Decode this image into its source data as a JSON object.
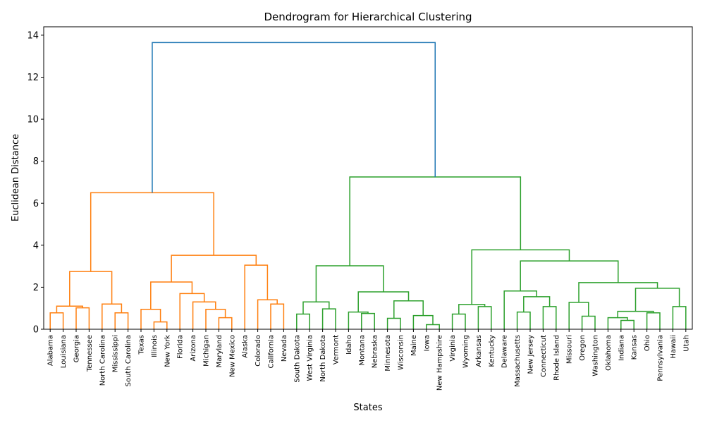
{
  "chart_data": {
    "type": "dendrogram",
    "title": "Dendrogram for Hierarchical Clustering",
    "xlabel": "States",
    "ylabel": "Euclidean Distance",
    "ylim": [
      0,
      14.4
    ],
    "yticks": [
      "0",
      "2",
      "4",
      "6",
      "8",
      "10",
      "12",
      "14"
    ],
    "grid": false,
    "colors": {
      "cluster_orange": "#ff7f0e",
      "cluster_green": "#2ca02c",
      "root_blue": "#1f77b4"
    },
    "leaves": [
      "Alabama",
      "Louisiana",
      "Georgia",
      "Tennessee",
      "North Carolina",
      "Mississippi",
      "South Carolina",
      "Texas",
      "Illinois",
      "New York",
      "Florida",
      "Arizona",
      "Michigan",
      "Maryland",
      "New Mexico",
      "Alaska",
      "Colorado",
      "California",
      "Nevada",
      "South Dakota",
      "West Virginia",
      "North Dakota",
      "Vermont",
      "Idaho",
      "Montana",
      "Nebraska",
      "Minnesota",
      "Wisconsin",
      "Maine",
      "Iowa",
      "New Hampshire",
      "Virginia",
      "Wyoming",
      "Arkansas",
      "Kentucky",
      "Delaware",
      "Massachusetts",
      "New Jersey",
      "Connecticut",
      "Rhode Island",
      "Missouri",
      "Oregon",
      "Washington",
      "Oklahoma",
      "Indiana",
      "Kansas",
      "Ohio",
      "Pennsylvania",
      "Hawaii",
      "Utah"
    ],
    "merges": [
      {
        "a": "Alabama",
        "b": "Louisiana",
        "h": 0.78
      },
      {
        "a": "Georgia",
        "b": "Tennessee",
        "h": 1.02
      },
      {
        "a": "m0",
        "b": "m1",
        "h": 1.1
      },
      {
        "a": "Mississippi",
        "b": "South Carolina",
        "h": 0.78
      },
      {
        "a": "North Carolina",
        "b": "m3",
        "h": 1.2
      },
      {
        "a": "m2",
        "b": "m4",
        "h": 2.75
      },
      {
        "a": "Illinois",
        "b": "New York",
        "h": 0.35
      },
      {
        "a": "Texas",
        "b": "m6",
        "h": 0.95
      },
      {
        "a": "Maryland",
        "b": "New Mexico",
        "h": 0.55
      },
      {
        "a": "Michigan",
        "b": "m8",
        "h": 0.95
      },
      {
        "a": "Arizona",
        "b": "m9",
        "h": 1.3
      },
      {
        "a": "Florida",
        "b": "m10",
        "h": 1.7
      },
      {
        "a": "m7",
        "b": "m11",
        "h": 2.25
      },
      {
        "a": "California",
        "b": "Nevada",
        "h": 1.2
      },
      {
        "a": "Colorado",
        "b": "m13",
        "h": 1.4
      },
      {
        "a": "Alaska",
        "b": "m14",
        "h": 3.05
      },
      {
        "a": "m12",
        "b": "m15",
        "h": 3.52
      },
      {
        "a": "m5",
        "b": "m16",
        "h": 6.5
      },
      {
        "a": "South Dakota",
        "b": "West Virginia",
        "h": 0.72
      },
      {
        "a": "North Dakota",
        "b": "Vermont",
        "h": 0.97
      },
      {
        "a": "m18",
        "b": "m19",
        "h": 1.3
      },
      {
        "a": "Montana",
        "b": "Nebraska",
        "h": 0.75
      },
      {
        "a": "Idaho",
        "b": "m21",
        "h": 0.82
      },
      {
        "a": "Minnesota",
        "b": "Wisconsin",
        "h": 0.52
      },
      {
        "a": "Iowa",
        "b": "New Hampshire",
        "h": 0.22
      },
      {
        "a": "Maine",
        "b": "m24",
        "h": 0.65
      },
      {
        "a": "m23",
        "b": "m25",
        "h": 1.35
      },
      {
        "a": "m22",
        "b": "m26",
        "h": 1.78
      },
      {
        "a": "m20",
        "b": "m27",
        "h": 3.02
      },
      {
        "a": "Virginia",
        "b": "Wyoming",
        "h": 0.72
      },
      {
        "a": "Arkansas",
        "b": "Kentucky",
        "h": 1.08
      },
      {
        "a": "m29",
        "b": "m30",
        "h": 1.18
      },
      {
        "a": "Massachusetts",
        "b": "New Jersey",
        "h": 0.82
      },
      {
        "a": "Connecticut",
        "b": "Rhode Island",
        "h": 1.08
      },
      {
        "a": "m32",
        "b": "m33",
        "h": 1.55
      },
      {
        "a": "Delaware",
        "b": "m34",
        "h": 1.82
      },
      {
        "a": "Oregon",
        "b": "Washington",
        "h": 0.62
      },
      {
        "a": "Missouri",
        "b": "m36",
        "h": 1.28
      },
      {
        "a": "Indiana",
        "b": "Kansas",
        "h": 0.42
      },
      {
        "a": "Oklahoma",
        "b": "m38",
        "h": 0.55
      },
      {
        "a": "Ohio",
        "b": "Pennsylvania",
        "h": 0.78
      },
      {
        "a": "m39",
        "b": "m40",
        "h": 0.85
      },
      {
        "a": "Hawaii",
        "b": "Utah",
        "h": 1.08
      },
      {
        "a": "m41",
        "b": "m42",
        "h": 1.95
      },
      {
        "a": "m37",
        "b": "m43",
        "h": 2.22
      },
      {
        "a": "m35",
        "b": "m44",
        "h": 3.25
      },
      {
        "a": "m31",
        "b": "m45",
        "h": 3.78
      },
      {
        "a": "m28",
        "b": "m46",
        "h": 7.25
      },
      {
        "a": "m17",
        "b": "m47",
        "h": 13.65
      }
    ]
  }
}
